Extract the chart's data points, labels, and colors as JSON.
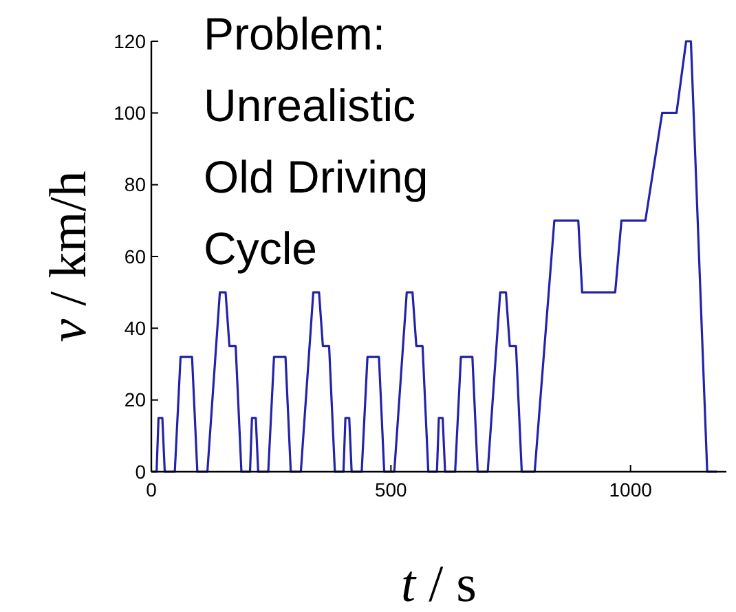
{
  "chart_data": {
    "type": "line",
    "xlabel": "t / s",
    "ylabel": "v / km/h",
    "annotations": [
      "Problem:\nUnrealistic\nOld Driving\nCycle"
    ],
    "xlim": [
      0,
      1200
    ],
    "xticks": [
      0,
      500,
      1000
    ],
    "ylim": [
      0,
      120
    ],
    "yticks": [
      0,
      20,
      40,
      60,
      80,
      100,
      120
    ],
    "grid": false,
    "marker": "none",
    "line_style": "solid",
    "series": [
      {
        "color": "#2222aa",
        "x": [
          0,
          11,
          15,
          23,
          28,
          49,
          61,
          85,
          96,
          117,
          143,
          155,
          163,
          176,
          188,
          195,
          206,
          210,
          218,
          223,
          244,
          256,
          280,
          291,
          312,
          338,
          350,
          358,
          371,
          383,
          390,
          401,
          405,
          413,
          418,
          439,
          451,
          475,
          486,
          507,
          533,
          545,
          553,
          566,
          578,
          585,
          596,
          600,
          608,
          613,
          634,
          646,
          670,
          681,
          702,
          728,
          740,
          748,
          761,
          773,
          780,
          800,
          841,
          891,
          899,
          968,
          981,
          1031,
          1066,
          1096,
          1116,
          1126,
          1160,
          1180
        ],
        "values": [
          0,
          0,
          15,
          15,
          0,
          0,
          32,
          32,
          0,
          0,
          50,
          50,
          35,
          35,
          0,
          0,
          0,
          15,
          15,
          0,
          0,
          32,
          32,
          0,
          0,
          50,
          50,
          35,
          35,
          0,
          0,
          0,
          15,
          15,
          0,
          0,
          32,
          32,
          0,
          0,
          50,
          50,
          35,
          35,
          0,
          0,
          0,
          15,
          15,
          0,
          0,
          32,
          32,
          0,
          0,
          50,
          50,
          35,
          35,
          0,
          0,
          0,
          70,
          70,
          50,
          50,
          70,
          70,
          100,
          100,
          120,
          120,
          0,
          0
        ]
      }
    ]
  }
}
